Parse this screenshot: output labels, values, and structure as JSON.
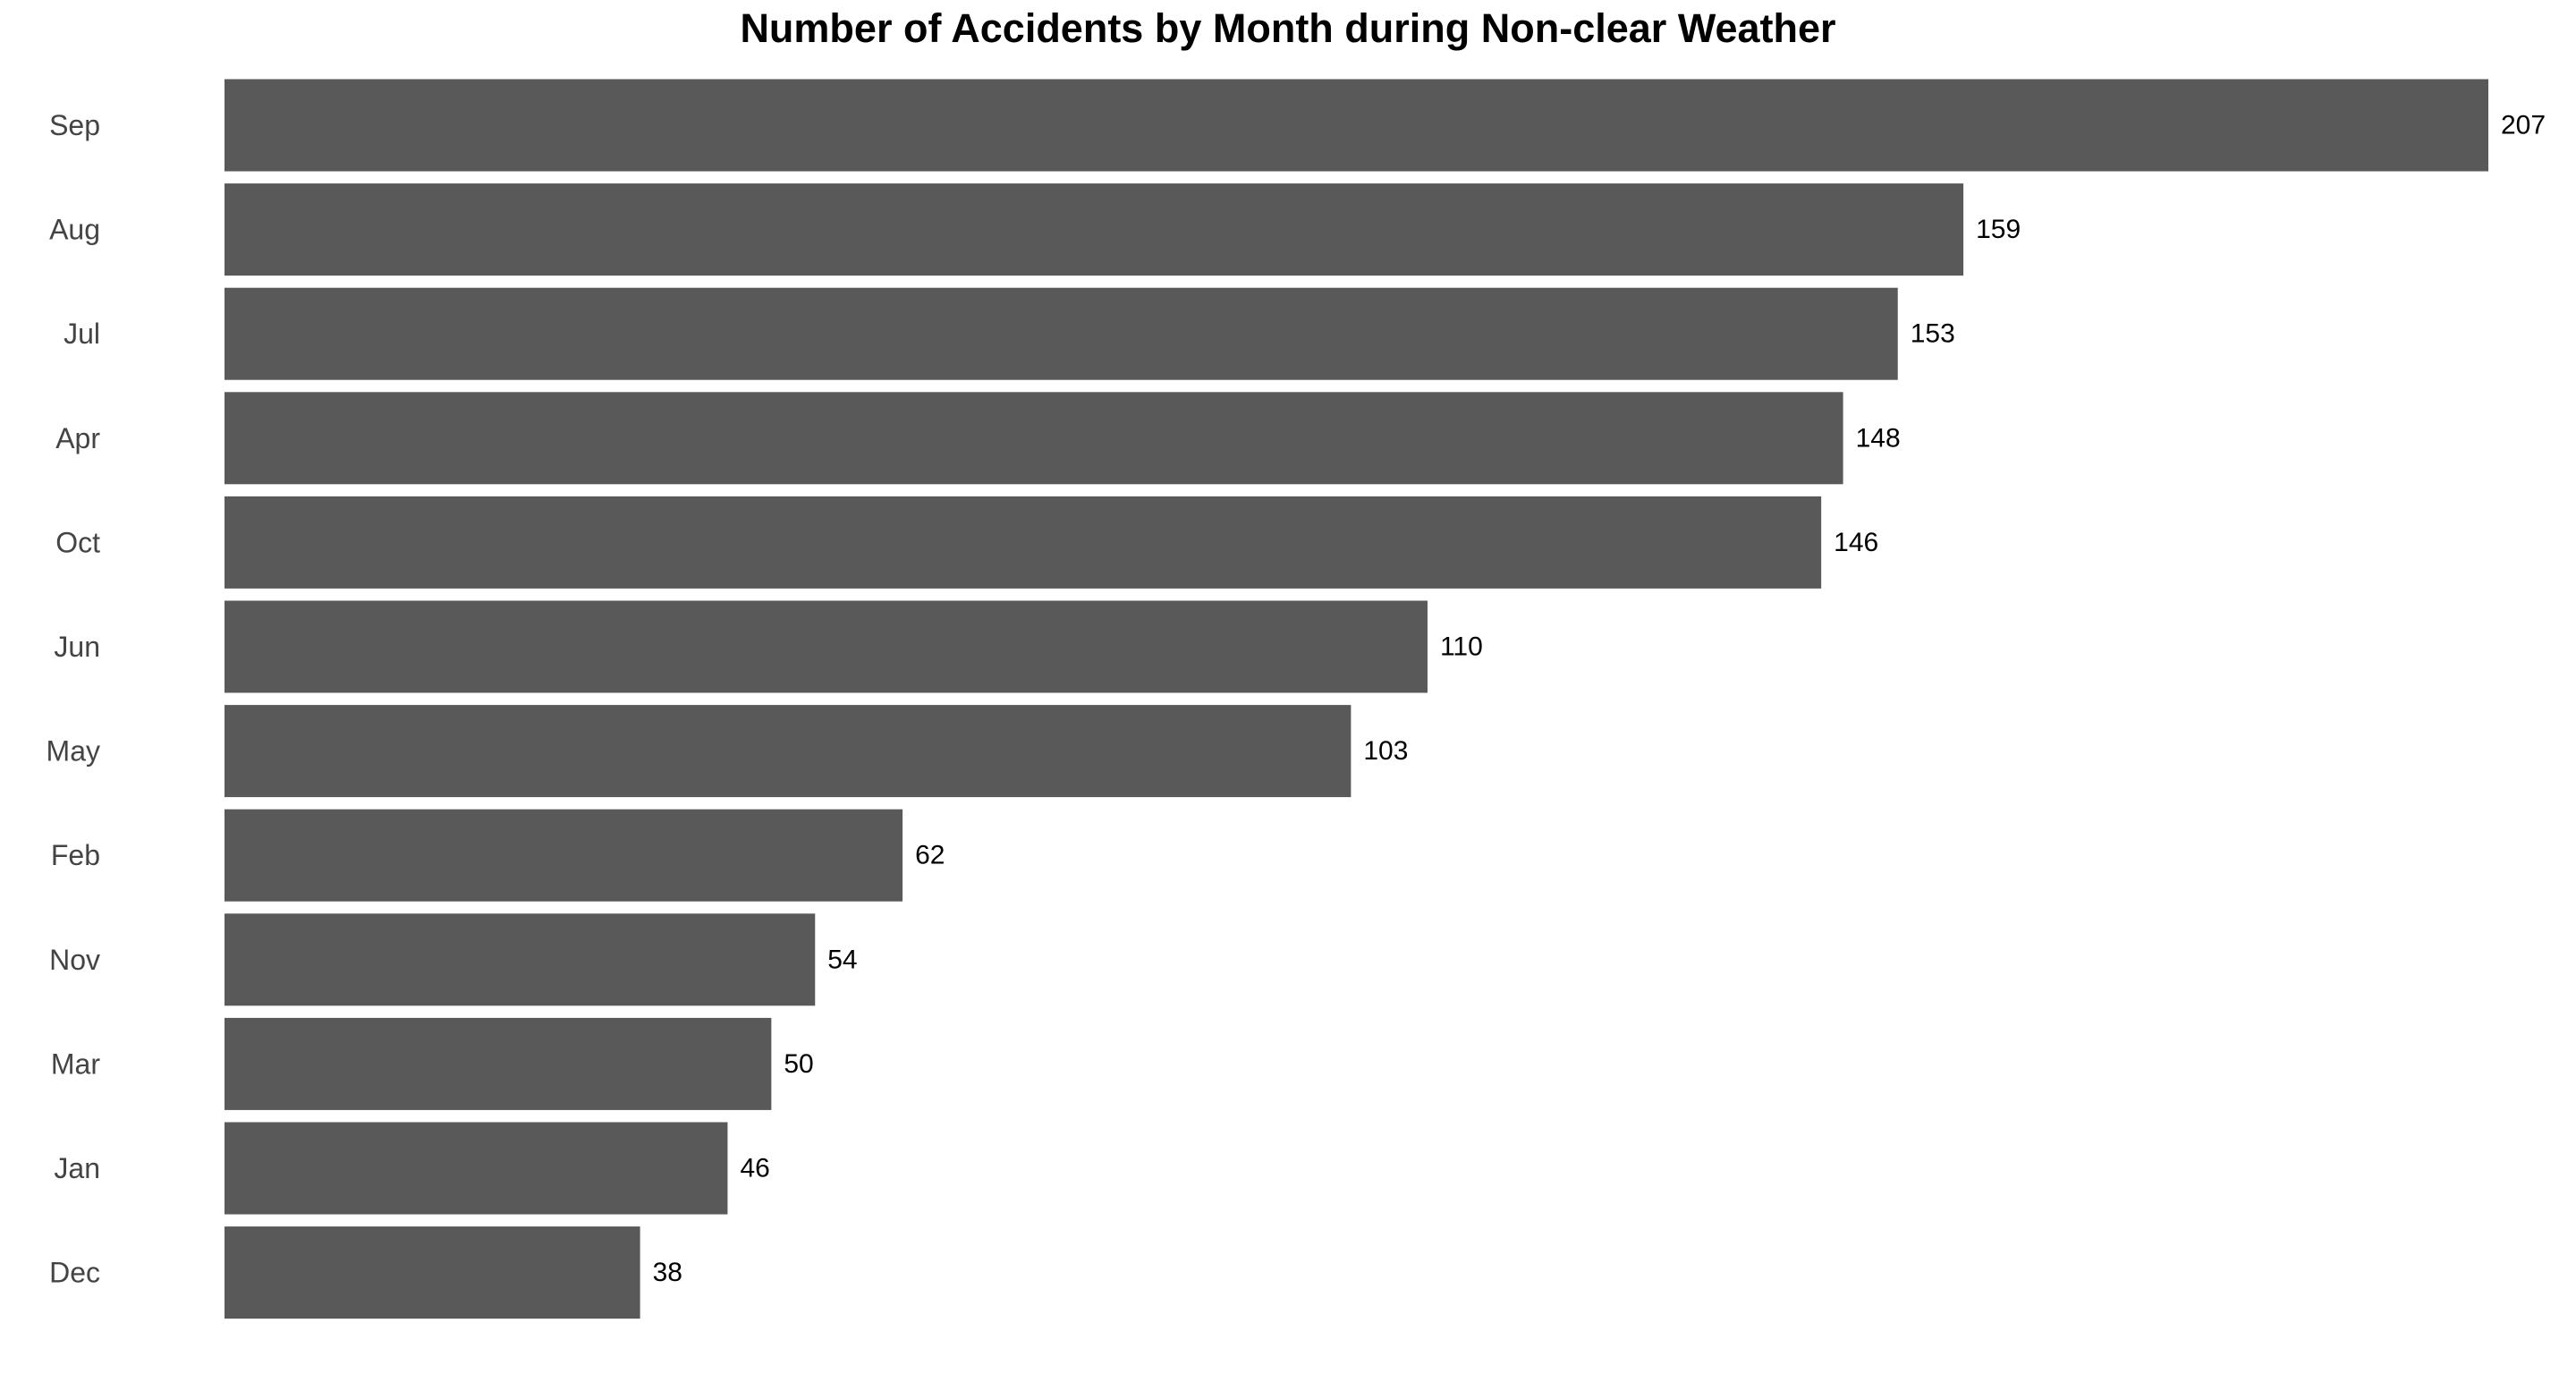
{
  "chart_data": {
    "type": "bar",
    "orientation": "horizontal",
    "title": "Number of Accidents by Month during Non-clear Weather",
    "xlabel": "",
    "ylabel": "",
    "categories": [
      "Sep",
      "Aug",
      "Jul",
      "Apr",
      "Oct",
      "Jun",
      "May",
      "Feb",
      "Nov",
      "Mar",
      "Jan",
      "Dec"
    ],
    "values": [
      207,
      159,
      153,
      148,
      146,
      110,
      103,
      62,
      54,
      50,
      46,
      38
    ],
    "xlim": [
      0,
      207
    ],
    "grid": false,
    "legend": "none",
    "bar_color": "#595959",
    "data_labels": true
  }
}
